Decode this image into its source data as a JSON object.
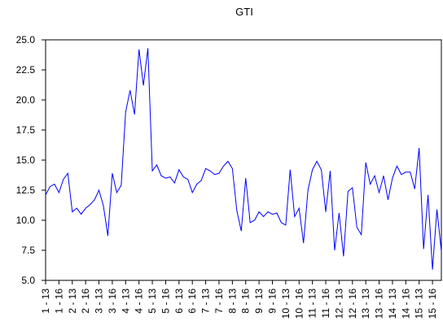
{
  "chart_data": {
    "type": "line",
    "title": "GTI",
    "categories": [
      "1 - 13",
      null,
      null,
      "1 - 16",
      null,
      null,
      "2 - 13",
      null,
      null,
      "2 - 16",
      null,
      null,
      "3 - 13",
      null,
      null,
      "3 - 16",
      null,
      null,
      "4 - 13",
      null,
      null,
      "4 - 16",
      null,
      null,
      "5 - 13",
      null,
      null,
      "5 - 16",
      null,
      null,
      "6 - 13",
      null,
      null,
      "6 - 16",
      null,
      null,
      "7 - 13",
      null,
      null,
      "7 - 16",
      null,
      null,
      "8 - 13",
      null,
      null,
      "8 - 16",
      null,
      null,
      "9 - 13",
      null,
      null,
      "9 - 16",
      null,
      null,
      "10 - 13",
      null,
      null,
      "10 - 16",
      null,
      null,
      "11 - 13",
      null,
      null,
      "11 - 16",
      null,
      null,
      "12 - 13",
      null,
      null,
      "12 - 16",
      null,
      null,
      "13 - 13",
      null,
      null,
      "13 - 16",
      null,
      null,
      "14 - 13",
      null,
      null,
      "14 - 16",
      null,
      null,
      "15 - 13",
      null,
      null,
      "15 - 16",
      null,
      null
    ],
    "series": [
      {
        "name": "GTI",
        "color": "#0000ff",
        "values": [
          12.1,
          12.8,
          13.0,
          12.3,
          13.4,
          13.9,
          10.7,
          11.0,
          10.5,
          11.0,
          11.3,
          11.7,
          12.5,
          11.2,
          8.7,
          13.9,
          12.3,
          12.9,
          19.0,
          20.8,
          18.8,
          24.2,
          21.2,
          24.3,
          14.1,
          14.6,
          13.7,
          13.5,
          13.6,
          13.1,
          14.2,
          13.6,
          13.4,
          12.3,
          13.0,
          13.3,
          14.3,
          14.1,
          13.8,
          13.9,
          14.5,
          14.9,
          14.3,
          10.8,
          9.1,
          13.5,
          9.8,
          10.0,
          10.7,
          10.3,
          10.7,
          10.5,
          10.6,
          9.8,
          9.6,
          14.2,
          10.3,
          11.0,
          8.1,
          12.5,
          14.2,
          14.9,
          14.2,
          10.7,
          14.1,
          7.5,
          10.6,
          7.0,
          12.4,
          12.7,
          9.4,
          8.8,
          14.8,
          13.0,
          13.7,
          12.3,
          13.7,
          11.7,
          13.5,
          14.5,
          13.8,
          14.0,
          14.0,
          12.6,
          16.0,
          7.6,
          12.1,
          5.9,
          10.9,
          7.4
        ]
      }
    ],
    "ylim": [
      5,
      25
    ],
    "yticks": [
      {
        "value": 5,
        "label": "5.0"
      },
      {
        "value": 7.5,
        "label": "7.5"
      },
      {
        "value": 10,
        "label": "10.0"
      },
      {
        "value": 12.5,
        "label": "12.5"
      },
      {
        "value": 15,
        "label": "15.0"
      },
      {
        "value": 17.5,
        "label": "17.5"
      },
      {
        "value": 20,
        "label": "20.0"
      },
      {
        "value": 22.5,
        "label": "22.5"
      },
      {
        "value": 25,
        "label": "25.0"
      }
    ]
  }
}
